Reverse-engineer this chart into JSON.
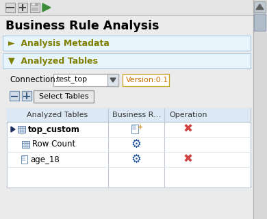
{
  "bg_color": "#ebebeb",
  "toolbar_bg": "#e4e4e4",
  "title": "Business Rule Analysis",
  "title_fontsize": 12.5,
  "section1_label": "►  Analysis Metadata",
  "section2_label": "▼  Analyzed Tables",
  "section_color": "#808000",
  "connection_label": "Connection:",
  "connection_value": "test_top",
  "version_label": "Version:0.1",
  "select_btn": "Select Tables",
  "col1": "Analyzed Tables",
  "col2": "Business R...",
  "col3": "Operation",
  "row1_name": "top_custom",
  "row2_name": "Row Count",
  "row3_name": "age_18",
  "panel_bg": "#ffffff",
  "header_bg": "#dce9f5",
  "section_bg": "#e8f4fb",
  "border_color": "#a8c8e0",
  "gear_color": "#2255a0",
  "x_color": "#d04040",
  "tree_color": "#1a3060",
  "toolbar_icon_color": "#3a8a3a",
  "version_border": "#c8a020",
  "version_text": "#c87000"
}
